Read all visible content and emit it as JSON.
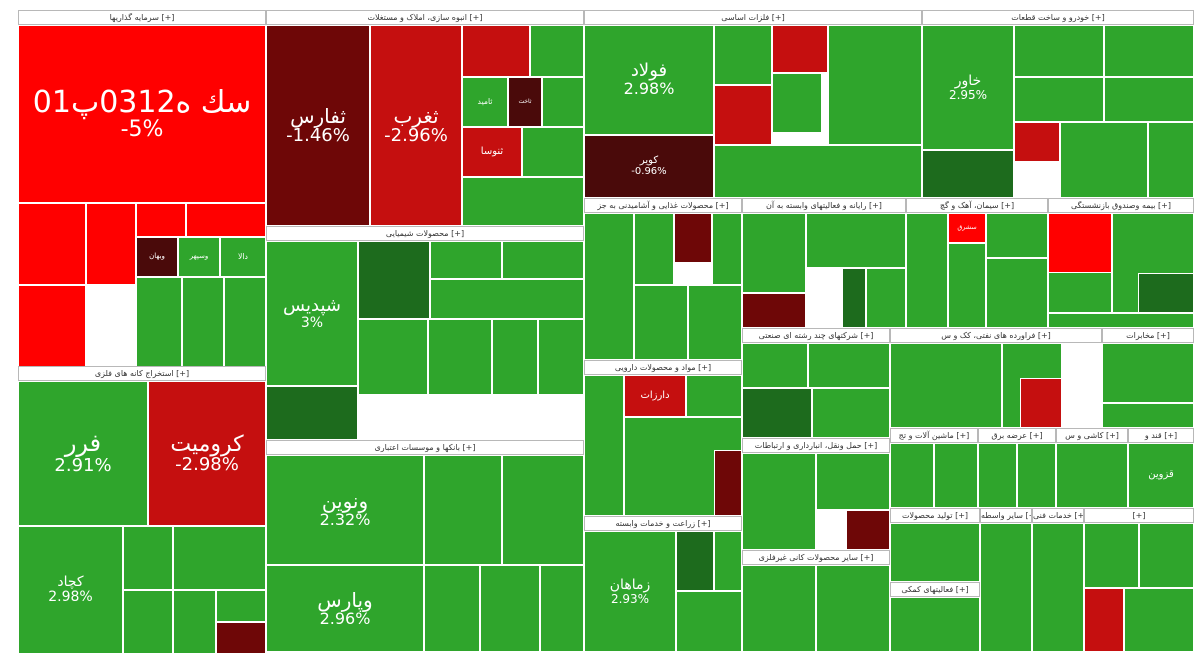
{
  "colors": {
    "green": "#2fa52c",
    "green_light": "#3cb83a",
    "green_dark": "#1d6b1d",
    "red": "#ff0000",
    "red_mid": "#c50f0f",
    "red_dark": "#6e0707",
    "maroon": "#4a0a0a"
  },
  "sectors": [
    {
      "title": "سرمایه گذاریها [+]",
      "tiles": [
        {
          "name": "سك ه0312پ01",
          "pct": "-5%",
          "tone": "red"
        },
        {
          "name": "",
          "pct": "",
          "tone": "red"
        },
        {
          "name": "",
          "pct": "",
          "tone": "red"
        },
        {
          "name": "",
          "pct": "",
          "tone": "red"
        },
        {
          "name": "",
          "pct": "",
          "tone": "red"
        },
        {
          "name": "",
          "pct": "",
          "tone": "red"
        },
        {
          "name": "وبهان",
          "pct": "",
          "tone": "maroon"
        },
        {
          "name": "وسپهر",
          "pct": "",
          "tone": "green"
        },
        {
          "name": "دالا",
          "pct": "",
          "tone": "green"
        },
        {
          "name": "",
          "pct": "",
          "tone": "green"
        },
        {
          "name": "",
          "pct": "",
          "tone": "green"
        },
        {
          "name": "",
          "pct": "",
          "tone": "green"
        }
      ]
    },
    {
      "title": "استخراج کانه های فلزی [+]",
      "tiles": [
        {
          "name": "فرر",
          "pct": "2.91%",
          "tone": "green"
        },
        {
          "name": "كرومیت",
          "pct": "-2.98%",
          "tone": "red_mid"
        },
        {
          "name": "كچاد",
          "pct": "2.98%",
          "tone": "green"
        },
        {
          "name": "",
          "pct": "",
          "tone": "green"
        },
        {
          "name": "",
          "pct": "",
          "tone": "green"
        },
        {
          "name": "",
          "pct": "",
          "tone": "green"
        },
        {
          "name": "",
          "pct": "",
          "tone": "green"
        },
        {
          "name": "",
          "pct": "",
          "tone": "green"
        },
        {
          "name": "",
          "pct": "",
          "tone": "red_dark"
        }
      ]
    },
    {
      "title": "انبوه سازی، املاک و مستغلات [+]",
      "tiles": [
        {
          "name": "ثفارس",
          "pct": "-1.46%",
          "tone": "red_dark"
        },
        {
          "name": "ثغرب",
          "pct": "-2.96%",
          "tone": "red_mid"
        },
        {
          "name": "",
          "pct": "",
          "tone": "red_mid"
        },
        {
          "name": "",
          "pct": "",
          "tone": "green"
        },
        {
          "name": "ثامید",
          "pct": "",
          "tone": "green"
        },
        {
          "name": "ثاخت",
          "pct": "",
          "tone": "maroon"
        },
        {
          "name": "",
          "pct": "",
          "tone": "green"
        },
        {
          "name": "ثنوسا",
          "pct": "",
          "tone": "red_mid"
        },
        {
          "name": "",
          "pct": "",
          "tone": "green"
        },
        {
          "name": "",
          "pct": "",
          "tone": "green"
        }
      ]
    },
    {
      "title": "محصولات شیمیایی [+]",
      "tiles": [
        {
          "name": "شپدیس",
          "pct": "3%",
          "tone": "green"
        },
        {
          "name": "",
          "pct": "",
          "tone": "green_dark"
        },
        {
          "name": "",
          "pct": "",
          "tone": "green"
        },
        {
          "name": "",
          "pct": "",
          "tone": "green"
        },
        {
          "name": "",
          "pct": "",
          "tone": "green"
        },
        {
          "name": "",
          "pct": "",
          "tone": "green"
        },
        {
          "name": "",
          "pct": "",
          "tone": "green"
        },
        {
          "name": "",
          "pct": "",
          "tone": "green"
        },
        {
          "name": "",
          "pct": "",
          "tone": "green"
        },
        {
          "name": "",
          "pct": "",
          "tone": "green_dark"
        }
      ]
    },
    {
      "title": "بانکها و موسسات اعتباری [+]",
      "tiles": [
        {
          "name": "ونوین",
          "pct": "2.32%",
          "tone": "green"
        },
        {
          "name": "",
          "pct": "",
          "tone": "green"
        },
        {
          "name": "",
          "pct": "",
          "tone": "green"
        },
        {
          "name": "وپارس",
          "pct": "2.96%",
          "tone": "green"
        },
        {
          "name": "",
          "pct": "",
          "tone": "green"
        },
        {
          "name": "",
          "pct": "",
          "tone": "green"
        },
        {
          "name": "",
          "pct": "",
          "tone": "green"
        }
      ]
    },
    {
      "title": "فلزات اساسی [+]",
      "tiles": [
        {
          "name": "فولاد",
          "pct": "2.98%",
          "tone": "green"
        },
        {
          "name": "كویر",
          "pct": "-0.96%",
          "tone": "maroon"
        },
        {
          "name": "",
          "pct": "",
          "tone": "green"
        },
        {
          "name": "",
          "pct": "",
          "tone": "red_mid"
        },
        {
          "name": "",
          "pct": "",
          "tone": "red_mid"
        },
        {
          "name": "",
          "pct": "",
          "tone": "green"
        },
        {
          "name": "",
          "pct": "",
          "tone": "green"
        },
        {
          "name": "",
          "pct": "",
          "tone": "green"
        }
      ]
    },
    {
      "title": "خودرو و ساخت قطعات [+]",
      "tiles": [
        {
          "name": "خاور",
          "pct": "2.95%",
          "tone": "green"
        },
        {
          "name": "",
          "pct": "",
          "tone": "green_dark"
        },
        {
          "name": "",
          "pct": "",
          "tone": "red_mid"
        },
        {
          "name": "",
          "pct": "",
          "tone": "green"
        },
        {
          "name": "",
          "pct": "",
          "tone": "green"
        },
        {
          "name": "",
          "pct": "",
          "tone": "green"
        },
        {
          "name": "",
          "pct": "",
          "tone": "green"
        },
        {
          "name": "",
          "pct": "",
          "tone": "green"
        },
        {
          "name": "",
          "pct": "",
          "tone": "green"
        }
      ]
    },
    {
      "title": "محصولات غذایی و آشامیدنی به جز [+]",
      "tiles": [
        {
          "name": "",
          "pct": "",
          "tone": "green"
        },
        {
          "name": "",
          "pct": "",
          "tone": "red_dark"
        },
        {
          "name": "",
          "pct": "",
          "tone": "green"
        },
        {
          "name": "",
          "pct": "",
          "tone": "green"
        },
        {
          "name": "",
          "pct": "",
          "tone": "green"
        },
        {
          "name": "",
          "pct": "",
          "tone": "green"
        }
      ]
    },
    {
      "title": "رایانه و فعالیتهای وابسته به آن [+]",
      "tiles": [
        {
          "name": "",
          "pct": "",
          "tone": "green"
        },
        {
          "name": "",
          "pct": "",
          "tone": "red_dark"
        },
        {
          "name": "",
          "pct": "",
          "tone": "green"
        },
        {
          "name": "",
          "pct": "",
          "tone": "green_dark"
        },
        {
          "name": "",
          "pct": "",
          "tone": "green"
        }
      ]
    },
    {
      "title": "سیمان، آهک و گچ [+]",
      "tiles": [
        {
          "name": "",
          "pct": "",
          "tone": "green"
        },
        {
          "name": "سشرق",
          "pct": "",
          "tone": "red"
        },
        {
          "name": "",
          "pct": "",
          "tone": "green"
        },
        {
          "name": "",
          "pct": "",
          "tone": "green"
        },
        {
          "name": "",
          "pct": "",
          "tone": "green"
        }
      ]
    },
    {
      "title": "بیمه وصندوق بازنشستگی [+]",
      "tiles": [
        {
          "name": "",
          "pct": "",
          "tone": "green"
        },
        {
          "name": "",
          "pct": "",
          "tone": "red"
        },
        {
          "name": "",
          "pct": "",
          "tone": "green"
        },
        {
          "name": "",
          "pct": "",
          "tone": "green"
        },
        {
          "name": "",
          "pct": "",
          "tone": "green_dark"
        }
      ]
    },
    {
      "title": "مواد و محصولات دارویی [+]",
      "tiles": [
        {
          "name": "",
          "pct": "",
          "tone": "green"
        },
        {
          "name": "دارزات",
          "pct": "",
          "tone": "red_mid"
        },
        {
          "name": "",
          "pct": "",
          "tone": "green"
        },
        {
          "name": "",
          "pct": "",
          "tone": "green"
        },
        {
          "name": "",
          "pct": "",
          "tone": "red_dark"
        }
      ]
    },
    {
      "title": "شرکتهای چند رشته ای صنعتی [+]",
      "tiles": [
        {
          "name": "",
          "pct": "",
          "tone": "green"
        },
        {
          "name": "",
          "pct": "",
          "tone": "green"
        },
        {
          "name": "",
          "pct": "",
          "tone": "green_dark"
        },
        {
          "name": "",
          "pct": "",
          "tone": "green"
        }
      ]
    },
    {
      "title": "فراورده های نفتی، کک و س [+]",
      "tiles": [
        {
          "name": "",
          "pct": "",
          "tone": "green"
        },
        {
          "name": "",
          "pct": "",
          "tone": "green"
        },
        {
          "name": "",
          "pct": "",
          "tone": "red_mid"
        }
      ]
    },
    {
      "title": "زراعت و خدمات وابسته [+]",
      "tiles": [
        {
          "name": "زماهان",
          "pct": "2.93%",
          "tone": "green"
        },
        {
          "name": "",
          "pct": "",
          "tone": "green_dark"
        },
        {
          "name": "",
          "pct": "",
          "tone": "green"
        },
        {
          "name": "",
          "pct": "",
          "tone": "green"
        }
      ]
    },
    {
      "title": "حمل ونقل، انبارداری و ارتباطات [+]",
      "tiles": [
        {
          "name": "",
          "pct": "",
          "tone": "green"
        },
        {
          "name": "",
          "pct": "",
          "tone": "green"
        },
        {
          "name": "",
          "pct": "",
          "tone": "red_dark"
        }
      ]
    },
    {
      "title": "سایر محصولات کانی غیرفلزی [+]",
      "tiles": [
        {
          "name": "",
          "pct": "",
          "tone": "green"
        },
        {
          "name": "",
          "pct": "",
          "tone": "green"
        }
      ]
    },
    {
      "title": "مخابرات [+]",
      "tiles": [
        {
          "name": "",
          "pct": "",
          "tone": "green"
        },
        {
          "name": "",
          "pct": "",
          "tone": "green"
        }
      ]
    },
    {
      "title": "ماشین آلات و تج [+]",
      "tiles": [
        {
          "name": "",
          "pct": "",
          "tone": "green"
        },
        {
          "name": "",
          "pct": "",
          "tone": "green"
        }
      ]
    },
    {
      "title": "عرضه برق [+]",
      "tiles": [
        {
          "name": "",
          "pct": "",
          "tone": "green"
        },
        {
          "name": "",
          "pct": "",
          "tone": "green"
        }
      ]
    },
    {
      "title": "کاشی و س [+]",
      "tiles": [
        {
          "name": "",
          "pct": "",
          "tone": "green"
        }
      ]
    },
    {
      "title": "قند و [+]",
      "tiles": [
        {
          "name": "قزوین",
          "pct": "",
          "tone": "green"
        }
      ]
    },
    {
      "title": "تولید محصولات [+]",
      "tiles": [
        {
          "name": "",
          "pct": "",
          "tone": "green"
        }
      ]
    },
    {
      "title": "فعالیتهای کمکی [+]",
      "tiles": [
        {
          "name": "",
          "pct": "",
          "tone": "green"
        }
      ]
    },
    {
      "title": "سایر واسطه [+]",
      "tiles": [
        {
          "name": "",
          "pct": "",
          "tone": "green"
        }
      ]
    },
    {
      "title": "خدمات فنی [+]",
      "tiles": [
        {
          "name": "",
          "pct": "",
          "tone": "green"
        }
      ]
    },
    {
      "title": "[+]",
      "tiles": [
        {
          "name": "",
          "pct": "",
          "tone": "green"
        },
        {
          "name": "",
          "pct": "",
          "tone": "green"
        },
        {
          "name": "",
          "pct": "",
          "tone": "red_mid"
        },
        {
          "name": "",
          "pct": "",
          "tone": "green"
        }
      ]
    }
  ]
}
